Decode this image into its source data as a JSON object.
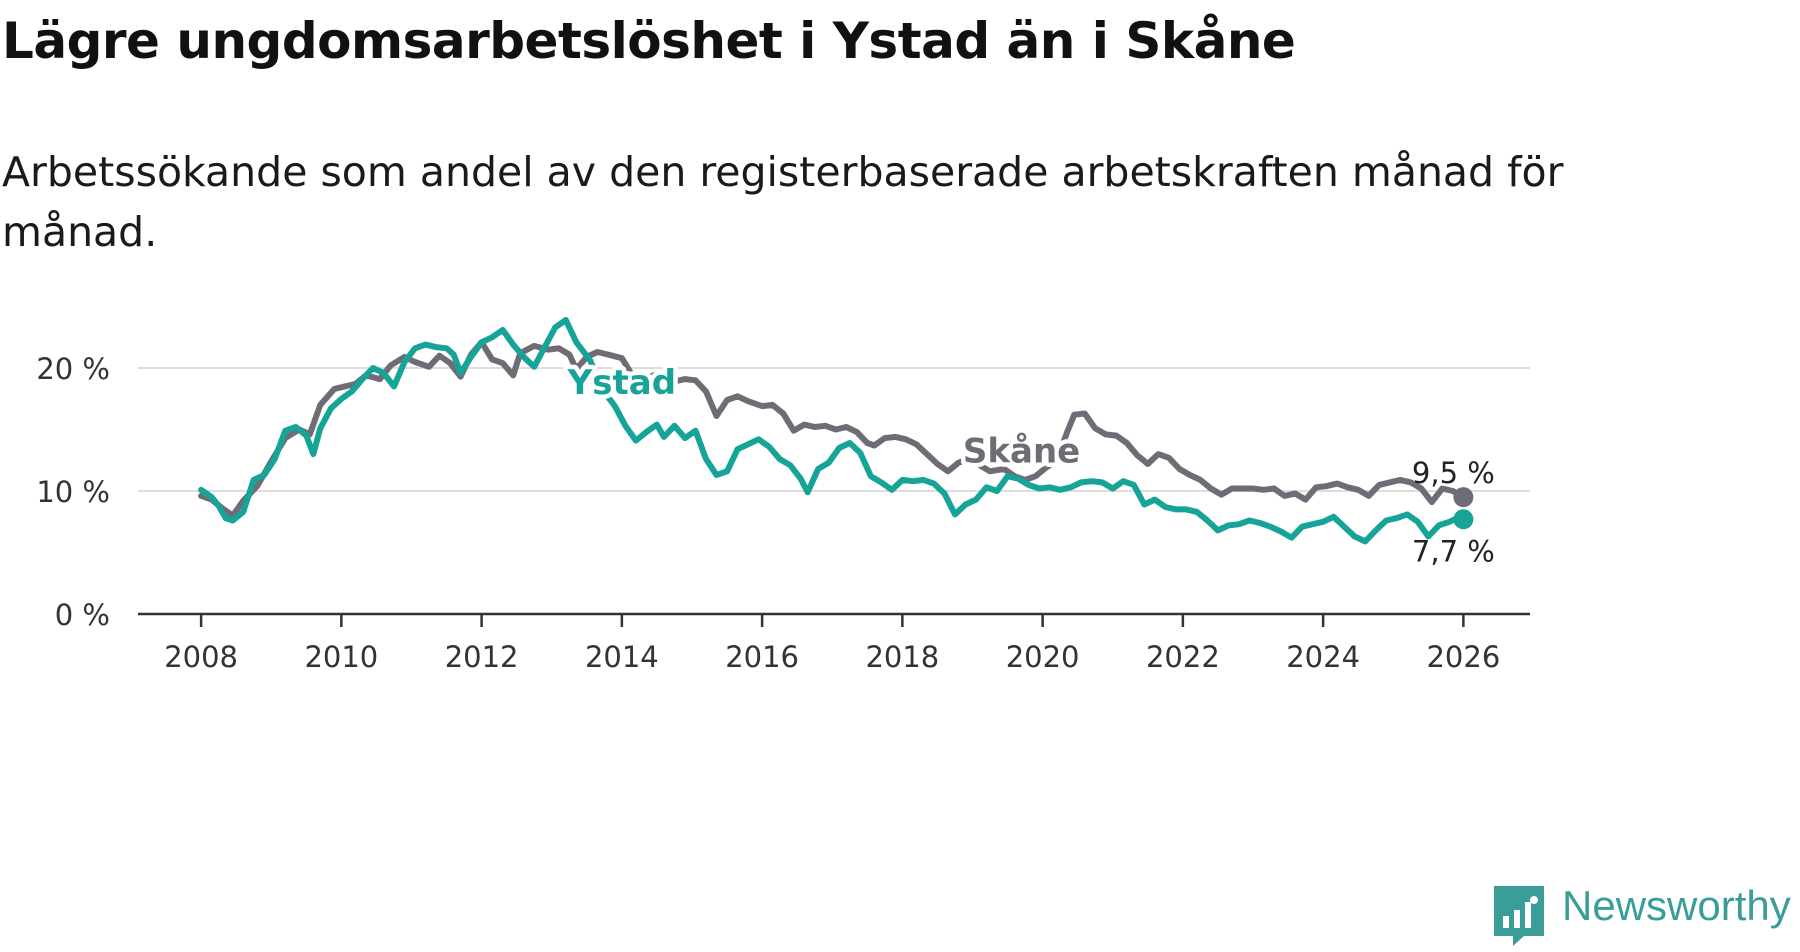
{
  "title": "Lägre ungdomsarbetslöshet i Ystad än i Skåne",
  "subtitle": "Arbetssökande som andel av den registerbaserade arbetskraften månad för månad.",
  "brand": "Newsworthy",
  "colors": {
    "ystad": "#16a398",
    "skane": "#6f6c76",
    "grid": "#dddddd",
    "axis": "#333333"
  },
  "chart_data": {
    "type": "line",
    "title": "Lägre ungdomsarbetslöshet i Ystad än i Skåne",
    "xlabel": "",
    "ylabel": "",
    "xlim": [
      2007.1,
      2026.95
    ],
    "ylim": [
      0,
      25
    ],
    "x_ticks": [
      {
        "value": 2008,
        "label": "2008"
      },
      {
        "value": 2010,
        "label": "2010"
      },
      {
        "value": 2012,
        "label": "2012"
      },
      {
        "value": 2014,
        "label": "2014"
      },
      {
        "value": 2016,
        "label": "2016"
      },
      {
        "value": 2018,
        "label": "2018"
      },
      {
        "value": 2020,
        "label": "2020"
      },
      {
        "value": 2022,
        "label": "2022"
      },
      {
        "value": 2024,
        "label": "2024"
      },
      {
        "value": 2026,
        "label": "2026"
      }
    ],
    "y_ticks": [
      {
        "value": 0,
        "label": "0 %"
      },
      {
        "value": 10,
        "label": "10 %"
      },
      {
        "value": 20,
        "label": "20 %"
      }
    ],
    "grid": true,
    "series": [
      {
        "name": "Skåne",
        "key": "skane",
        "label": "Skåne",
        "label_pos": [
          2019.7,
          12.3
        ],
        "end_label": "9,5 %",
        "end_label_offset": [
          -10,
          -14
        ],
        "points": [
          [
            2008.0,
            9.6
          ],
          [
            2008.15,
            9.3
          ],
          [
            2008.3,
            8.6
          ],
          [
            2008.45,
            8.0
          ],
          [
            2008.6,
            9.2
          ],
          [
            2008.8,
            10.4
          ],
          [
            2009.0,
            12.4
          ],
          [
            2009.2,
            14.3
          ],
          [
            2009.4,
            15.0
          ],
          [
            2009.55,
            14.6
          ],
          [
            2009.7,
            17.0
          ],
          [
            2009.9,
            18.3
          ],
          [
            2010.05,
            18.5
          ],
          [
            2010.2,
            18.7
          ],
          [
            2010.35,
            19.4
          ],
          [
            2010.55,
            19.1
          ],
          [
            2010.7,
            20.2
          ],
          [
            2010.9,
            20.9
          ],
          [
            2011.05,
            20.5
          ],
          [
            2011.25,
            20.1
          ],
          [
            2011.4,
            21.0
          ],
          [
            2011.55,
            20.4
          ],
          [
            2011.7,
            19.3
          ],
          [
            2011.85,
            21.1
          ],
          [
            2012.0,
            22.1
          ],
          [
            2012.15,
            20.7
          ],
          [
            2012.3,
            20.4
          ],
          [
            2012.45,
            19.4
          ],
          [
            2012.55,
            21.2
          ],
          [
            2012.75,
            21.8
          ],
          [
            2012.95,
            21.5
          ],
          [
            2013.1,
            21.6
          ],
          [
            2013.25,
            21.1
          ],
          [
            2013.35,
            19.9
          ],
          [
            2013.5,
            20.9
          ],
          [
            2013.65,
            21.3
          ],
          [
            2013.8,
            21.1
          ],
          [
            2014.0,
            20.8
          ],
          [
            2014.15,
            19.4
          ],
          [
            2014.3,
            18.9
          ],
          [
            2014.45,
            19.4
          ],
          [
            2014.6,
            19.6
          ],
          [
            2014.75,
            18.9
          ],
          [
            2014.9,
            19.1
          ],
          [
            2015.05,
            19.0
          ],
          [
            2015.2,
            18.1
          ],
          [
            2015.35,
            16.1
          ],
          [
            2015.5,
            17.4
          ],
          [
            2015.65,
            17.7
          ],
          [
            2015.8,
            17.3
          ],
          [
            2016.0,
            16.9
          ],
          [
            2016.15,
            17.0
          ],
          [
            2016.3,
            16.3
          ],
          [
            2016.45,
            14.9
          ],
          [
            2016.6,
            15.4
          ],
          [
            2016.75,
            15.2
          ],
          [
            2016.9,
            15.3
          ],
          [
            2017.05,
            15.0
          ],
          [
            2017.2,
            15.2
          ],
          [
            2017.35,
            14.8
          ],
          [
            2017.5,
            13.9
          ],
          [
            2017.6,
            13.7
          ],
          [
            2017.75,
            14.3
          ],
          [
            2017.9,
            14.4
          ],
          [
            2018.05,
            14.2
          ],
          [
            2018.2,
            13.8
          ],
          [
            2018.35,
            13.0
          ],
          [
            2018.5,
            12.2
          ],
          [
            2018.65,
            11.6
          ],
          [
            2018.8,
            12.3
          ],
          [
            2018.95,
            12.6
          ],
          [
            2019.1,
            12.1
          ],
          [
            2019.25,
            11.6
          ],
          [
            2019.45,
            11.8
          ],
          [
            2019.6,
            11.2
          ],
          [
            2019.75,
            10.9
          ],
          [
            2019.9,
            11.2
          ],
          [
            2020.05,
            11.9
          ],
          [
            2020.2,
            12.5
          ],
          [
            2020.35,
            14.8
          ],
          [
            2020.45,
            16.2
          ],
          [
            2020.6,
            16.3
          ],
          [
            2020.75,
            15.1
          ],
          [
            2020.9,
            14.6
          ],
          [
            2021.05,
            14.5
          ],
          [
            2021.2,
            13.9
          ],
          [
            2021.35,
            12.9
          ],
          [
            2021.5,
            12.2
          ],
          [
            2021.65,
            13.0
          ],
          [
            2021.8,
            12.7
          ],
          [
            2021.95,
            11.8
          ],
          [
            2022.1,
            11.3
          ],
          [
            2022.25,
            10.9
          ],
          [
            2022.4,
            10.2
          ],
          [
            2022.55,
            9.7
          ],
          [
            2022.7,
            10.2
          ],
          [
            2022.85,
            10.2
          ],
          [
            2023.0,
            10.2
          ],
          [
            2023.15,
            10.1
          ],
          [
            2023.3,
            10.2
          ],
          [
            2023.45,
            9.6
          ],
          [
            2023.6,
            9.8
          ],
          [
            2023.75,
            9.3
          ],
          [
            2023.9,
            10.3
          ],
          [
            2024.05,
            10.4
          ],
          [
            2024.2,
            10.6
          ],
          [
            2024.35,
            10.3
          ],
          [
            2024.5,
            10.1
          ],
          [
            2024.65,
            9.6
          ],
          [
            2024.8,
            10.5
          ],
          [
            2024.95,
            10.7
          ],
          [
            2025.1,
            10.9
          ],
          [
            2025.25,
            10.7
          ],
          [
            2025.4,
            10.2
          ],
          [
            2025.55,
            9.1
          ],
          [
            2025.7,
            10.2
          ],
          [
            2025.85,
            10.0
          ],
          [
            2026.0,
            9.5
          ]
        ]
      },
      {
        "name": "Ystad",
        "key": "ystad",
        "label": "Ystad",
        "label_pos": [
          2014.0,
          17.9
        ],
        "end_label": "7,7 %",
        "end_label_offset": [
          -10,
          42
        ],
        "points": [
          [
            2008.0,
            10.1
          ],
          [
            2008.15,
            9.5
          ],
          [
            2008.25,
            8.8
          ],
          [
            2008.35,
            7.8
          ],
          [
            2008.45,
            7.6
          ],
          [
            2008.6,
            8.3
          ],
          [
            2008.75,
            10.9
          ],
          [
            2008.9,
            11.3
          ],
          [
            2009.05,
            12.6
          ],
          [
            2009.2,
            14.9
          ],
          [
            2009.35,
            15.2
          ],
          [
            2009.5,
            14.5
          ],
          [
            2009.6,
            13.0
          ],
          [
            2009.7,
            15.1
          ],
          [
            2009.85,
            16.7
          ],
          [
            2010.0,
            17.5
          ],
          [
            2010.15,
            18.1
          ],
          [
            2010.3,
            19.1
          ],
          [
            2010.45,
            20.0
          ],
          [
            2010.6,
            19.6
          ],
          [
            2010.75,
            18.5
          ],
          [
            2010.9,
            20.5
          ],
          [
            2011.05,
            21.6
          ],
          [
            2011.2,
            21.9
          ],
          [
            2011.35,
            21.7
          ],
          [
            2011.5,
            21.6
          ],
          [
            2011.6,
            21.1
          ],
          [
            2011.7,
            19.6
          ],
          [
            2011.85,
            20.9
          ],
          [
            2012.0,
            22.1
          ],
          [
            2012.15,
            22.5
          ],
          [
            2012.3,
            23.1
          ],
          [
            2012.45,
            21.9
          ],
          [
            2012.6,
            20.9
          ],
          [
            2012.75,
            20.1
          ],
          [
            2012.9,
            21.7
          ],
          [
            2013.05,
            23.3
          ],
          [
            2013.2,
            23.9
          ],
          [
            2013.35,
            22.1
          ],
          [
            2013.55,
            20.6
          ],
          [
            2013.7,
            18.4
          ],
          [
            2013.9,
            16.9
          ],
          [
            2014.05,
            15.3
          ],
          [
            2014.2,
            14.1
          ],
          [
            2014.35,
            14.8
          ],
          [
            2014.5,
            15.4
          ],
          [
            2014.6,
            14.4
          ],
          [
            2014.75,
            15.3
          ],
          [
            2014.9,
            14.3
          ],
          [
            2015.05,
            14.9
          ],
          [
            2015.2,
            12.6
          ],
          [
            2015.35,
            11.3
          ],
          [
            2015.5,
            11.6
          ],
          [
            2015.65,
            13.4
          ],
          [
            2015.8,
            13.8
          ],
          [
            2015.95,
            14.2
          ],
          [
            2016.1,
            13.6
          ],
          [
            2016.25,
            12.6
          ],
          [
            2016.4,
            12.1
          ],
          [
            2016.55,
            11.0
          ],
          [
            2016.65,
            9.9
          ],
          [
            2016.8,
            11.8
          ],
          [
            2016.95,
            12.3
          ],
          [
            2017.1,
            13.5
          ],
          [
            2017.25,
            13.9
          ],
          [
            2017.4,
            13.1
          ],
          [
            2017.55,
            11.2
          ],
          [
            2017.7,
            10.7
          ],
          [
            2017.85,
            10.1
          ],
          [
            2018.0,
            10.9
          ],
          [
            2018.15,
            10.8
          ],
          [
            2018.3,
            10.9
          ],
          [
            2018.45,
            10.6
          ],
          [
            2018.6,
            9.8
          ],
          [
            2018.75,
            8.1
          ],
          [
            2018.9,
            8.9
          ],
          [
            2019.05,
            9.3
          ],
          [
            2019.2,
            10.3
          ],
          [
            2019.35,
            10.0
          ],
          [
            2019.5,
            11.2
          ],
          [
            2019.65,
            11.0
          ],
          [
            2019.8,
            10.5
          ],
          [
            2019.95,
            10.2
          ],
          [
            2020.1,
            10.3
          ],
          [
            2020.25,
            10.1
          ],
          [
            2020.4,
            10.3
          ],
          [
            2020.55,
            10.7
          ],
          [
            2020.7,
            10.8
          ],
          [
            2020.85,
            10.7
          ],
          [
            2021.0,
            10.2
          ],
          [
            2021.15,
            10.8
          ],
          [
            2021.3,
            10.5
          ],
          [
            2021.45,
            8.9
          ],
          [
            2021.6,
            9.3
          ],
          [
            2021.75,
            8.7
          ],
          [
            2021.9,
            8.5
          ],
          [
            2022.05,
            8.5
          ],
          [
            2022.2,
            8.3
          ],
          [
            2022.35,
            7.6
          ],
          [
            2022.5,
            6.8
          ],
          [
            2022.65,
            7.2
          ],
          [
            2022.8,
            7.3
          ],
          [
            2022.95,
            7.6
          ],
          [
            2023.1,
            7.4
          ],
          [
            2023.25,
            7.1
          ],
          [
            2023.4,
            6.7
          ],
          [
            2023.55,
            6.2
          ],
          [
            2023.7,
            7.1
          ],
          [
            2023.85,
            7.3
          ],
          [
            2024.0,
            7.5
          ],
          [
            2024.15,
            7.9
          ],
          [
            2024.3,
            7.1
          ],
          [
            2024.45,
            6.3
          ],
          [
            2024.6,
            5.9
          ],
          [
            2024.75,
            6.8
          ],
          [
            2024.9,
            7.6
          ],
          [
            2025.05,
            7.8
          ],
          [
            2025.2,
            8.1
          ],
          [
            2025.35,
            7.5
          ],
          [
            2025.5,
            6.3
          ],
          [
            2025.65,
            7.2
          ],
          [
            2025.8,
            7.5
          ],
          [
            2025.95,
            7.9
          ],
          [
            2026.0,
            7.7
          ]
        ]
      }
    ]
  }
}
